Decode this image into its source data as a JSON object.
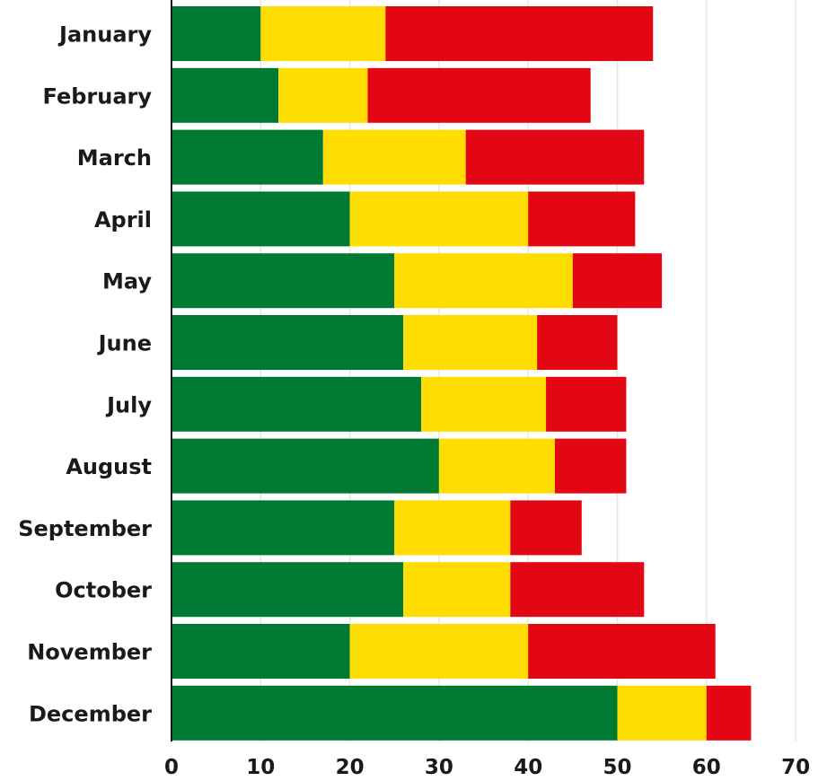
{
  "chart_data": {
    "type": "bar",
    "orientation": "horizontal",
    "stacked": true,
    "title": "",
    "xlabel": "",
    "ylabel": "",
    "xlim": [
      0,
      70
    ],
    "x_ticks": [
      0,
      10,
      20,
      30,
      40,
      50,
      60,
      70
    ],
    "grid": true,
    "legend": "none",
    "categories": [
      "January",
      "February",
      "March",
      "April",
      "May",
      "June",
      "July",
      "August",
      "September",
      "October",
      "November",
      "December"
    ],
    "series": [
      {
        "color": "#007a33",
        "values": [
          10,
          12,
          17,
          20,
          25,
          26,
          28,
          30,
          25,
          26,
          20,
          50
        ]
      },
      {
        "color": "#ffdd00",
        "values": [
          14,
          10,
          16,
          20,
          20,
          15,
          14,
          13,
          13,
          12,
          20,
          10
        ]
      },
      {
        "color": "#e30613",
        "values": [
          30,
          25,
          20,
          12,
          10,
          9,
          9,
          8,
          8,
          15,
          21,
          5
        ]
      }
    ]
  }
}
